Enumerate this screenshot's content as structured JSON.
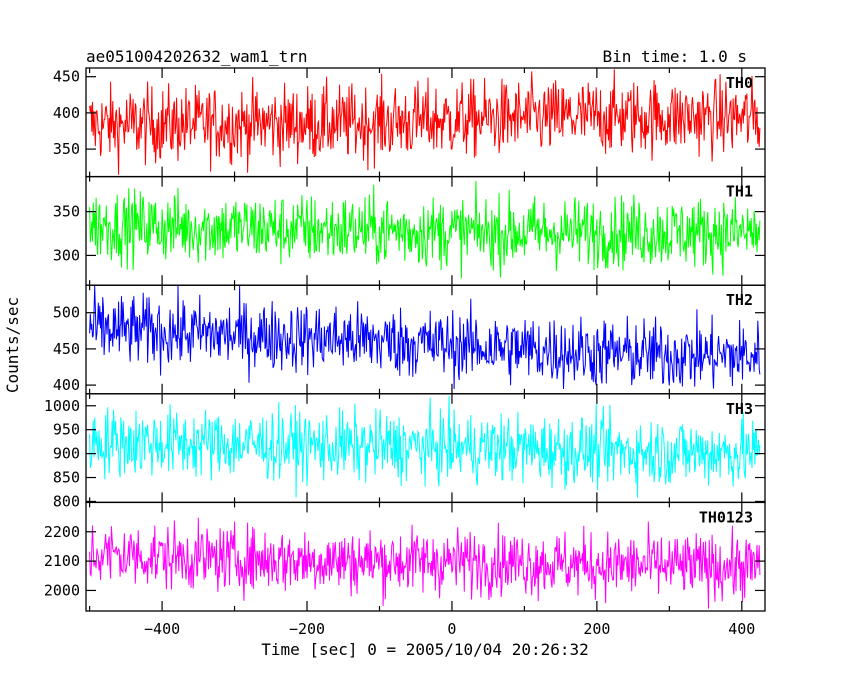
{
  "header": {
    "title": "ae051004202632_wam1_trn",
    "bin_time": "Bin time: 1.0 s"
  },
  "chart_data": {
    "type": "line",
    "xlabel": "Time [sec] 0 = 2005/10/04 20:26:32",
    "ylabel": "Counts/sec",
    "xlim": [
      -505,
      432
    ],
    "x_range": [
      -500,
      425
    ],
    "x_ticks": [
      "-400",
      "-200",
      "0",
      "200",
      "400"
    ],
    "panels": [
      {
        "name": "TH0",
        "color": "#ff0000",
        "ylim": [
          312,
          462
        ],
        "y_ticks": [
          "350",
          "400",
          "450"
        ],
        "mean": [
          383,
          385,
          386,
          392,
          395,
          393
        ],
        "noise": 26
      },
      {
        "name": "TH1",
        "color": "#00ff00",
        "ylim": [
          266,
          390
        ],
        "y_ticks": [
          "300",
          "350"
        ],
        "mean": [
          335,
          331,
          329,
          326,
          327,
          326
        ],
        "noise": 20
      },
      {
        "name": "TH2",
        "color": "#0000ff",
        "ylim": [
          388,
          538
        ],
        "y_ticks": [
          "400",
          "450",
          "500"
        ],
        "mean": [
          478,
          470,
          463,
          452,
          443,
          440
        ],
        "noise": 24
      },
      {
        "name": "TH3",
        "color": "#00ffff",
        "ylim": [
          798,
          1025
        ],
        "y_ticks": [
          "800",
          "850",
          "900",
          "950",
          "1000"
        ],
        "mean": [
          926,
          920,
          915,
          912,
          905,
          902
        ],
        "noise": 36
      },
      {
        "name": "TH0123",
        "color": "#ff00ff",
        "ylim": [
          1930,
          2300
        ],
        "y_ticks": [
          "2000",
          "2100",
          "2200"
        ],
        "mean": [
          2125,
          2108,
          2100,
          2098,
          2085,
          2080
        ],
        "noise": 55
      }
    ]
  }
}
